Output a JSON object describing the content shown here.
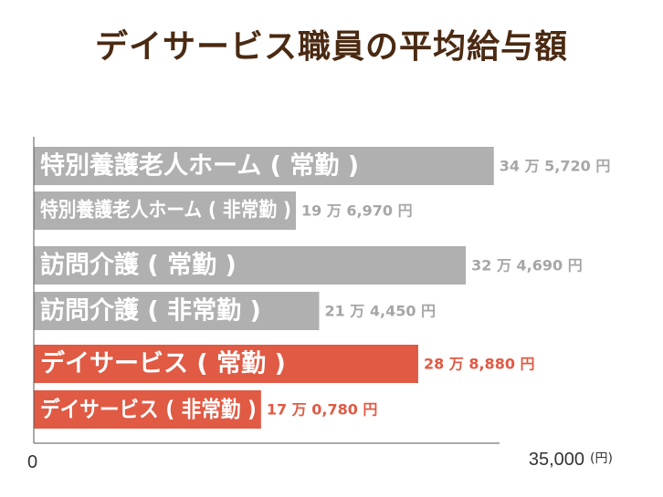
{
  "chart_data": {
    "type": "bar",
    "orientation": "horizontal",
    "title": "デイサービス職員の平均給与額",
    "categories": [
      "特別養護老人ホーム ( 常勤 )",
      "特別養護老人ホーム ( 非常勤 )",
      "訪問介護 ( 常勤 )",
      "訪問介護 ( 非常勤 )",
      "デイサービス ( 常勤 )",
      "デイサービス ( 非常勤 )"
    ],
    "values": [
      345720,
      196970,
      324690,
      214450,
      288880,
      170780
    ],
    "value_labels": [
      "34 万 5,720 円",
      "19 万 6,970 円",
      "32 万 4,690 円",
      "21 万 4,450 円",
      "28 万 8,880 円",
      "17 万 0,780 円"
    ],
    "highlight": [
      false,
      false,
      false,
      false,
      true,
      true
    ],
    "xlim": [
      0,
      350000
    ],
    "x_tick_labels": [
      "0",
      "35,000"
    ],
    "x_unit": "(円)",
    "grid": false,
    "colors": {
      "gray_bar": "#b0b0b0",
      "gray_text": "#a6a6a6",
      "highlight_bar": "#e05a44",
      "highlight_text": "#e05a44",
      "title": "#4a2a12"
    }
  }
}
